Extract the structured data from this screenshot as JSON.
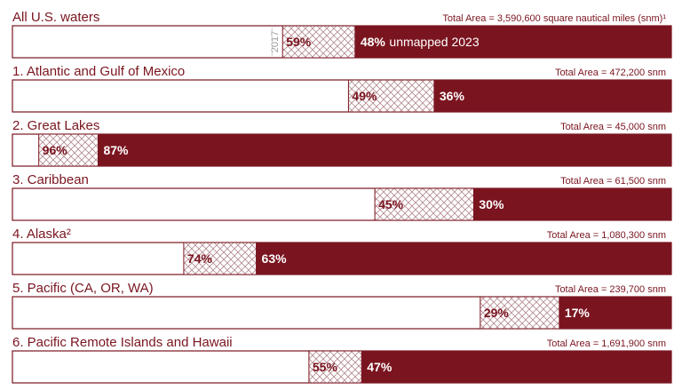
{
  "colors": {
    "unmapped": "#7a1520",
    "border": "#7a1520",
    "hatch": "#b48a8f",
    "year_label": "#9a9a9a"
  },
  "chart_data": {
    "type": "bar",
    "orientation": "horizontal-stacked",
    "x_range": [
      0,
      100
    ],
    "series": [
      {
        "name": "unmapped 2023"
      },
      {
        "name": "2017"
      }
    ],
    "rows": [
      {
        "label": "All U.S. waters",
        "total": "Total Area = 3,590,600 square nautical miles (snm)¹",
        "unmapped_2017": 59,
        "unmapped_2023": 48,
        "label_2017": "59%",
        "label_2023": "48%",
        "note_2023": "unmapped 2023",
        "year_tag": "2017"
      },
      {
        "label": "1. Atlantic and Gulf of Mexico",
        "total": "Total Area = 472,200 snm",
        "unmapped_2017": 49,
        "unmapped_2023": 36,
        "label_2017": "49%",
        "label_2023": "36%"
      },
      {
        "label": "2. Great Lakes",
        "total": "Total Area = 45,000 snm",
        "unmapped_2017": 96,
        "unmapped_2023": 87,
        "label_2017": "96%",
        "label_2023": "87%"
      },
      {
        "label": "3. Caribbean",
        "total": "Total Area = 61,500 snm",
        "unmapped_2017": 45,
        "unmapped_2023": 30,
        "label_2017": "45%",
        "label_2023": "30%"
      },
      {
        "label": "4. Alaska²",
        "total": "Total Area = 1,080,300 snm",
        "unmapped_2017": 74,
        "unmapped_2023": 63,
        "label_2017": "74%",
        "label_2023": "63%"
      },
      {
        "label": "5. Pacific (CA, OR, WA)",
        "total": "Total Area = 239,700 snm",
        "unmapped_2017": 29,
        "unmapped_2023": 17,
        "label_2017": "29%",
        "label_2023": "17%"
      },
      {
        "label": "6. Pacific Remote Islands and Hawaii",
        "total": "Total Area = 1,691,900 snm",
        "unmapped_2017": 55,
        "unmapped_2023": 47,
        "label_2017": "55%",
        "label_2023": "47%"
      }
    ]
  }
}
